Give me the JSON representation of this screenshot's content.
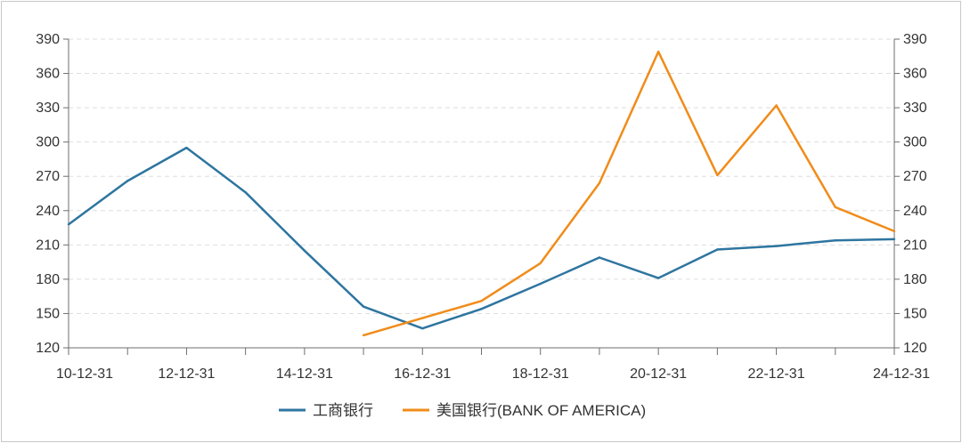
{
  "chart_data": {
    "type": "line",
    "x": [
      "10-12-31",
      "11-12-31",
      "12-12-31",
      "13-12-31",
      "14-12-31",
      "15-12-31",
      "16-12-31",
      "17-12-31",
      "18-12-31",
      "19-12-31",
      "20-12-31",
      "21-12-31",
      "22-12-31",
      "23-12-31",
      "24-12-31"
    ],
    "x_tick_labels": [
      "10-12-31",
      "12-12-31",
      "14-12-31",
      "16-12-31",
      "18-12-31",
      "20-12-31",
      "22-12-31",
      "24-12-31"
    ],
    "ylim": [
      120,
      390
    ],
    "y_ticks": [
      120,
      150,
      180,
      210,
      240,
      270,
      300,
      330,
      360,
      390
    ],
    "grid": true,
    "dual_y_axis": true,
    "legend_position": "bottom",
    "series": [
      {
        "name": "工商银行",
        "color": "#2e75a0",
        "values": [
          228,
          266,
          295,
          256,
          205,
          156,
          137,
          154,
          176,
          199,
          181,
          206,
          209,
          214,
          215
        ]
      },
      {
        "name": "美国银行(BANK OF AMERICA)",
        "color": "#f08c1a",
        "values": [
          null,
          null,
          null,
          null,
          null,
          131,
          146,
          161,
          194,
          264,
          379,
          271,
          332,
          243,
          222
        ]
      }
    ]
  }
}
